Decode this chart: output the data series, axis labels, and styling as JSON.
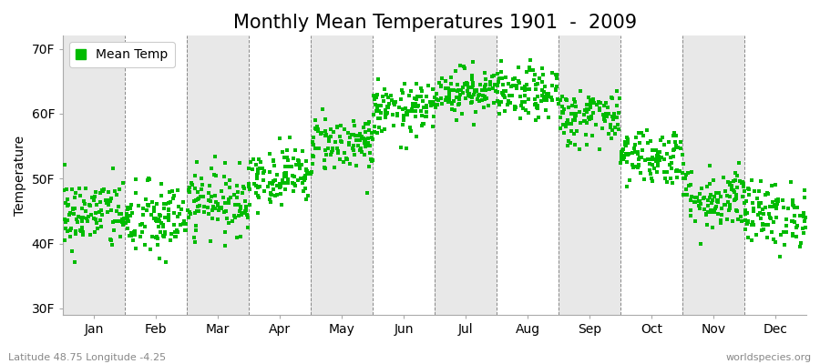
{
  "title": "Monthly Mean Temperatures 1901  -  2009",
  "ylabel": "Temperature",
  "xlabel_months": [
    "Jan",
    "Feb",
    "Mar",
    "Apr",
    "May",
    "Jun",
    "Jul",
    "Aug",
    "Sep",
    "Oct",
    "Nov",
    "Dec"
  ],
  "yticks": [
    30,
    40,
    50,
    60,
    70
  ],
  "ytick_labels": [
    "30F",
    "40F",
    "50F",
    "60F",
    "70F"
  ],
  "ylim": [
    29,
    72
  ],
  "dot_color": "#00bb00",
  "dot_size": 6,
  "background_color": "#ffffff",
  "plot_bg_color": "#ffffff",
  "band_color": "#e8e8e8",
  "legend_label": "Mean Temp",
  "subtitle_left": "Latitude 48.75 Longitude -4.25",
  "subtitle_right": "worldspecies.org",
  "monthly_means": [
    44.5,
    43.5,
    46.5,
    50.5,
    55.5,
    60.5,
    63.5,
    63.0,
    59.5,
    53.5,
    47.0,
    44.5
  ],
  "monthly_stds": [
    2.8,
    3.0,
    2.5,
    2.2,
    2.2,
    2.0,
    1.8,
    2.0,
    2.2,
    2.2,
    2.5,
    2.5
  ],
  "n_years": 109,
  "seed": 42,
  "title_fontsize": 15,
  "axis_fontsize": 10,
  "tick_fontsize": 10
}
